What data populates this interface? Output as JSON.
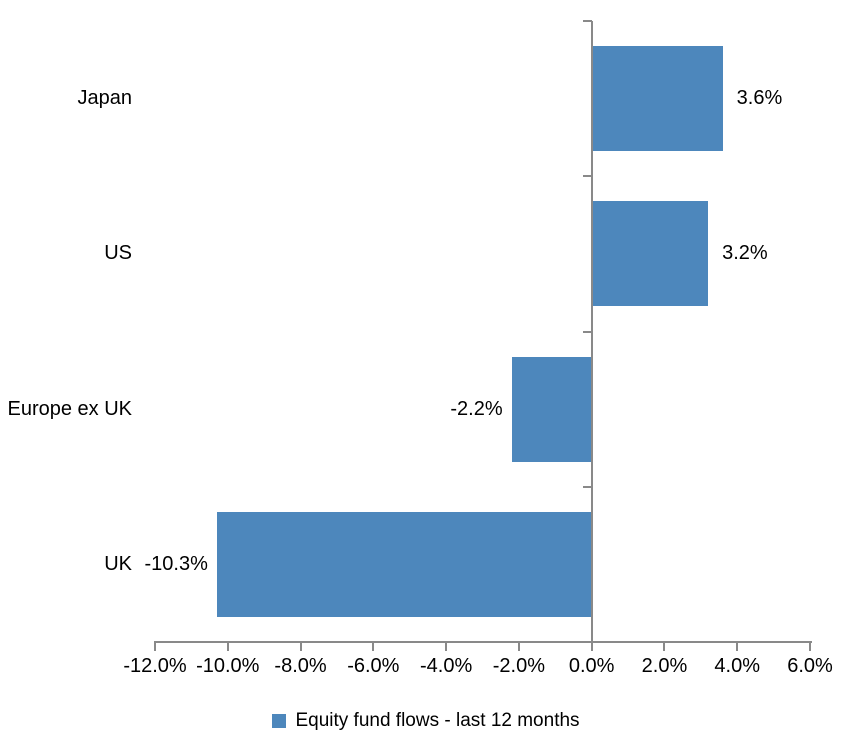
{
  "chart_data": {
    "type": "bar",
    "orientation": "horizontal",
    "categories": [
      "Japan",
      "US",
      "Europe ex UK",
      "UK"
    ],
    "series": [
      {
        "name": "Equity fund flows - last 12 months",
        "values": [
          3.6,
          3.2,
          -2.2,
          -10.3
        ],
        "value_labels": [
          "3.6%",
          "3.2%",
          "-2.2%",
          "-10.3%"
        ]
      }
    ],
    "xlim": [
      -12,
      6
    ],
    "x_tick_values": [
      -12,
      -10,
      -8,
      -6,
      -4,
      -2,
      0,
      2,
      4,
      6
    ],
    "x_tick_labels": [
      "-12.0%",
      "-10.0%",
      "-8.0%",
      "-6.0%",
      "-4.0%",
      "-2.0%",
      "0.0%",
      "2.0%",
      "4.0%",
      "6.0%"
    ],
    "grid": "off",
    "data_labels": "outside-end",
    "colors": {
      "bar": "#4D87BC",
      "axis": "#898989",
      "text": "#000000",
      "background": "#ffffff"
    },
    "legend": {
      "position": "bottom",
      "marker_color": "#4D87BC",
      "label": "Equity fund flows - last 12 months"
    }
  }
}
